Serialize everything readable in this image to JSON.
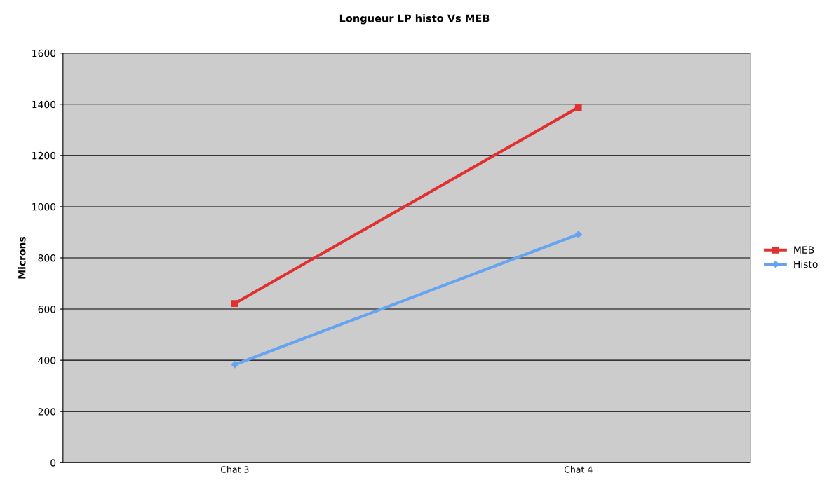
{
  "chart_data": {
    "type": "line",
    "title": "Longueur LP histo Vs MEB",
    "ylabel": "Microns",
    "categories": [
      "Chat 3",
      "Chat 4"
    ],
    "series": [
      {
        "name": "MEB",
        "color": "#e03030",
        "values": [
          622,
          1388
        ],
        "marker": "square"
      },
      {
        "name": "Histo",
        "color": "#66a3f0",
        "values": [
          383,
          892
        ],
        "marker": "diamond"
      }
    ],
    "ylim": [
      0,
      1600
    ],
    "yticks": [
      0,
      200,
      400,
      600,
      800,
      1000,
      1200,
      1400,
      1600
    ],
    "grid": "y",
    "legend": "right"
  }
}
